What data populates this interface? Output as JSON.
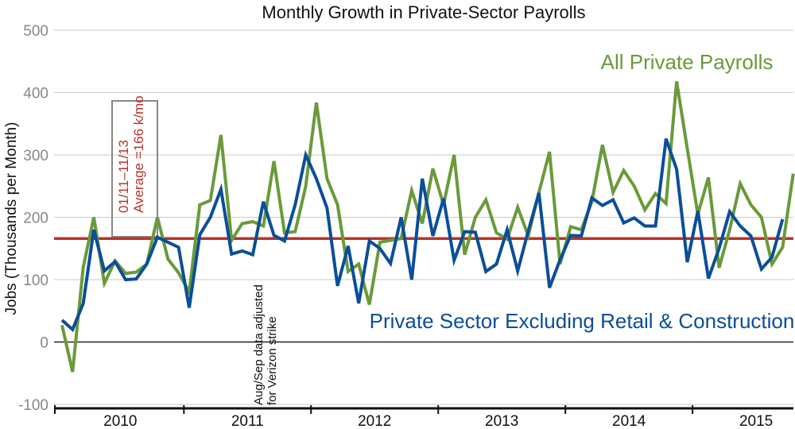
{
  "chart_data": {
    "type": "line",
    "title": "Monthly Growth in Private-Sector Payrolls",
    "xlabel": "",
    "ylabel": "Jobs (Thousands per Month)",
    "ylim": [
      -100,
      500
    ],
    "yticks": [
      -100,
      0,
      100,
      200,
      300,
      400,
      500
    ],
    "grid": true,
    "x_start": "2010-01",
    "x_end": "2015-11",
    "year_labels": [
      "2010",
      "2011",
      "2012",
      "2013",
      "2014",
      "2015"
    ],
    "series": [
      {
        "name": "All Private Payrolls",
        "color": "#6a9a3a",
        "values": [
          27,
          -48,
          120,
          200,
          94,
          130,
          110,
          112,
          125,
          200,
          133,
          111,
          80,
          220,
          227,
          332,
          163,
          190,
          193,
          186,
          290,
          175,
          177,
          250,
          384,
          262,
          220,
          113,
          125,
          60,
          160,
          163,
          166,
          243,
          190,
          278,
          220,
          300,
          140,
          200,
          228,
          175,
          165,
          216,
          170,
          240,
          305,
          125,
          185,
          180,
          225,
          316,
          240,
          275,
          250,
          212,
          238,
          222,
          418,
          310,
          205,
          264,
          119,
          180,
          254,
          220,
          200,
          125,
          152,
          270
        ]
      },
      {
        "name": "Private Sector Excluding Retail & Construction",
        "color": "#0b4e99",
        "values": [
          35,
          20,
          62,
          180,
          114,
          129,
          100,
          101,
          125,
          168,
          160,
          152,
          55,
          172,
          200,
          245,
          141,
          146,
          140,
          225,
          171,
          162,
          220,
          300,
          262,
          215,
          90,
          154,
          62,
          162,
          150,
          126,
          200,
          100,
          262,
          170,
          230,
          131,
          177,
          176,
          113,
          125,
          180,
          114,
          178,
          239,
          87,
          132,
          171,
          170,
          231,
          219,
          228,
          191,
          199,
          186,
          186,
          326,
          277,
          128,
          210,
          102,
          150,
          209,
          186,
          170,
          117,
          136,
          197
        ]
      }
    ],
    "reference_line": {
      "value": 166,
      "color": "#b8322a",
      "label_line1": "01/11–11/13",
      "label_line2": "Average =166 k/mo"
    },
    "annotations": {
      "green_label": "All Private Payrolls",
      "blue_label": "Private Sector Excluding Retail & Construction",
      "note_line1": "Aug/Sep data adjusted",
      "note_line2": "for Verizon strike"
    }
  }
}
